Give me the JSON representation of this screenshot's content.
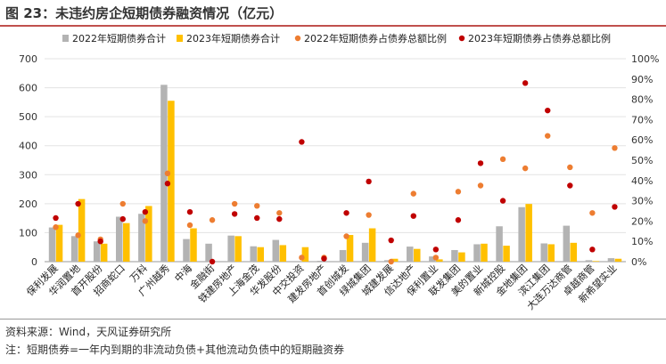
{
  "title": "图 23：未违约房企短期债券融资情况（亿元）",
  "source": "资料来源：Wind，天风证券研究所",
  "footnote": "注：短期债券=一年内到期的非流动负债+其他流动负债中的短期融资券",
  "colors": {
    "bar2022": "#b3b3b3",
    "bar2023": "#ffc000",
    "dot2022": "#ed7d31",
    "dot2023": "#c00000",
    "accent": "#c0504d"
  },
  "chart_data": {
    "type": "bar",
    "categories": [
      "保利发展",
      "华润置地",
      "首开股份",
      "招商蛇口",
      "万科",
      "广州越秀",
      "中海",
      "金融街",
      "铁建房地产",
      "上海金茂",
      "华发股份",
      "中交投资",
      "建发房地产",
      "首创城发",
      "绿城集团",
      "城建发展",
      "信达地产",
      "保利置业",
      "联发集团",
      "美的置业",
      "新城控股",
      "金地集团",
      "滨江集团",
      "大连万达商管",
      "卓越商管",
      "新希望实业"
    ],
    "series": [
      {
        "name": "2022年短期债券合计",
        "kind": "bar",
        "axis": "left",
        "values": [
          118,
          88,
          70,
          155,
          165,
          610,
          78,
          62,
          90,
          53,
          75,
          0,
          3,
          40,
          65,
          5,
          52,
          18,
          40,
          60,
          122,
          188,
          63,
          124,
          5,
          12
        ]
      },
      {
        "name": "2023年短期债券合计",
        "kind": "bar",
        "axis": "left",
        "values": [
          127,
          216,
          62,
          133,
          192,
          555,
          115,
          0,
          88,
          50,
          57,
          50,
          0,
          92,
          115,
          10,
          44,
          8,
          32,
          62,
          55,
          199,
          60,
          65,
          2,
          10
        ]
      },
      {
        "name": "2022年短期债券占债券总额比例",
        "kind": "dot",
        "axis": "right",
        "values": [
          0.17,
          0.13,
          0.11,
          0.285,
          0.2,
          0.435,
          0.18,
          0.205,
          0.285,
          0.275,
          0.24,
          0.02,
          0.02,
          0.125,
          0.23,
          0.0,
          0.335,
          0.02,
          0.345,
          0.375,
          0.505,
          0.46,
          0.62,
          0.465,
          0.24,
          0.56
        ]
      },
      {
        "name": "2023年短期债券占债券总额比例",
        "kind": "dot",
        "axis": "right",
        "values": [
          0.215,
          0.285,
          0.1,
          0.21,
          0.245,
          0.385,
          0.245,
          0.0,
          0.235,
          0.215,
          0.21,
          0.59,
          0.015,
          0.24,
          0.395,
          0.105,
          0.225,
          0.06,
          0.205,
          0.485,
          0.3,
          0.88,
          0.745,
          0.375,
          0.06,
          0.27
        ]
      }
    ],
    "left_axis": {
      "min": 0,
      "max": 700,
      "step": 100
    },
    "right_axis": {
      "min": 0,
      "max": 1,
      "step": 0.1
    },
    "grid": true,
    "legend_position": "top"
  }
}
